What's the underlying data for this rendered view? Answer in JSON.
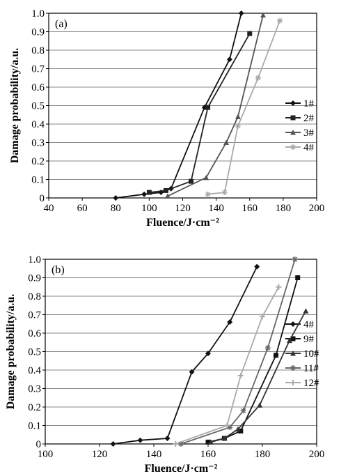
{
  "chart_data": [
    {
      "type": "line",
      "panel_label": "(a)",
      "xlabel": "Fluence/J·cm⁻²",
      "ylabel": "Damage probability/a.u.",
      "xlim": [
        40,
        200
      ],
      "ylim": [
        0,
        1.0
      ],
      "xticks": [
        40,
        60,
        80,
        100,
        120,
        140,
        160,
        180,
        200
      ],
      "yticks": [
        0,
        0.1,
        0.2,
        0.3,
        0.4,
        0.5,
        0.6,
        0.7,
        0.8,
        0.9,
        1.0
      ],
      "ytick_labels": [
        "0",
        "0.1",
        "0.2",
        "0.3",
        "0.4",
        "0.5",
        "0.6",
        "0.7",
        "0.8",
        "0.9",
        "1.0"
      ],
      "grid": "horizontal",
      "legend": "right",
      "series": [
        {
          "name": "1#",
          "color": "#111111",
          "marker": "diamond",
          "x": [
            80,
            97,
            107,
            113,
            133,
            148,
            155
          ],
          "y": [
            0,
            0.02,
            0.03,
            0.05,
            0.49,
            0.75,
            1.0
          ]
        },
        {
          "name": "2#",
          "color": "#222222",
          "marker": "square",
          "x": [
            100,
            110,
            125,
            135,
            160
          ],
          "y": [
            0.03,
            0.04,
            0.09,
            0.49,
            0.89
          ]
        },
        {
          "name": "3#",
          "color": "#555555",
          "marker": "triangle",
          "x": [
            111,
            134,
            146,
            153,
            168
          ],
          "y": [
            0.01,
            0.11,
            0.3,
            0.44,
            0.99
          ]
        },
        {
          "name": "4#",
          "color": "#aaaaaa",
          "marker": "star",
          "x": [
            135,
            145,
            153,
            165,
            178
          ],
          "y": [
            0.02,
            0.03,
            0.39,
            0.65,
            0.96
          ]
        }
      ]
    },
    {
      "type": "line",
      "panel_label": "(b)",
      "xlabel": "Fluence/J·cm⁻²",
      "ylabel": "Damage probability/a.u.",
      "xlim": [
        100,
        200
      ],
      "ylim": [
        0,
        1.0
      ],
      "xticks": [
        100,
        120,
        140,
        160,
        180,
        200
      ],
      "yticks": [
        0,
        0.1,
        0.2,
        0.3,
        0.4,
        0.5,
        0.6,
        0.7,
        0.8,
        0.9,
        1.0
      ],
      "ytick_labels": [
        "0",
        "0.1",
        "0.2",
        "0.3",
        "0.4",
        "0.5",
        "0.6",
        "0.7",
        "0.8",
        "0.9",
        "1.0"
      ],
      "grid": "horizontal",
      "legend": "right",
      "series": [
        {
          "name": "4#",
          "color": "#111111",
          "marker": "diamond",
          "x": [
            125,
            135,
            145,
            154,
            160,
            168,
            178
          ],
          "y": [
            0,
            0.02,
            0.03,
            0.39,
            0.49,
            0.66,
            0.96
          ]
        },
        {
          "name": "9#",
          "color": "#111111",
          "marker": "square",
          "x": [
            160,
            166,
            172,
            185,
            193
          ],
          "y": [
            0.01,
            0.03,
            0.07,
            0.48,
            0.9
          ]
        },
        {
          "name": "10#",
          "color": "#333333",
          "marker": "triangle",
          "x": [
            161,
            166,
            171,
            179,
            190,
            196
          ],
          "y": [
            0.01,
            0.03,
            0.08,
            0.21,
            0.56,
            0.72
          ]
        },
        {
          "name": "11#",
          "color": "#666666",
          "marker": "star",
          "x": [
            150,
            168,
            173,
            182,
            192
          ],
          "y": [
            0,
            0.09,
            0.18,
            0.52,
            1.0
          ]
        },
        {
          "name": "12#",
          "color": "#aaaaaa",
          "marker": "cross",
          "x": [
            148,
            167,
            172,
            180,
            186
          ],
          "y": [
            0,
            0.1,
            0.37,
            0.69,
            0.85
          ]
        }
      ]
    }
  ]
}
